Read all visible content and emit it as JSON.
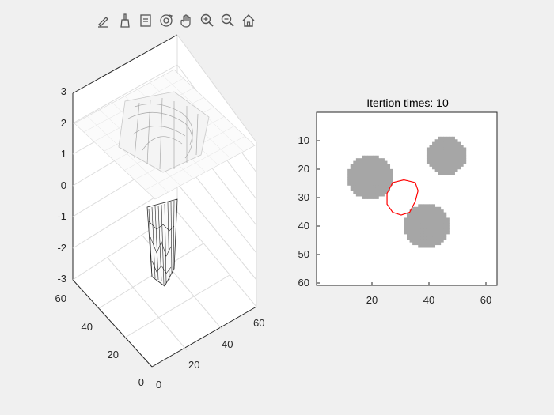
{
  "toolbar": {
    "buttons": [
      {
        "name": "edit-plot-icon"
      },
      {
        "name": "brush-icon"
      },
      {
        "name": "data-tips-icon"
      },
      {
        "name": "rotate-3d-icon"
      },
      {
        "name": "pan-hand-icon"
      },
      {
        "name": "zoom-in-icon"
      },
      {
        "name": "zoom-out-icon"
      },
      {
        "name": "home-restore-view-icon"
      }
    ]
  },
  "left_axes": {
    "z_ticks": [
      "3",
      "2",
      "1",
      "0",
      "-1",
      "-2",
      "-3"
    ],
    "y_ticks": [
      "60",
      "40",
      "20",
      "0"
    ],
    "x_ticks": [
      "0",
      "20",
      "40",
      "60"
    ]
  },
  "right_axes": {
    "title": "Itertion times: 10",
    "y_ticks": [
      "10",
      "20",
      "30",
      "40",
      "50",
      "60"
    ],
    "x_ticks": [
      "20",
      "40",
      "60"
    ]
  },
  "chart_data": [
    {
      "type": "surface",
      "xlim": [
        0,
        64
      ],
      "ylim": [
        0,
        64
      ],
      "zlim": [
        -3,
        3
      ],
      "description_values": {
        "plateau_level": 2,
        "pit_min": -3
      }
    },
    {
      "type": "heatmap",
      "title": "Itertion times: 10",
      "xlim": [
        0,
        64
      ],
      "ylim": [
        0,
        64
      ],
      "blobs": [
        {
          "cx": 19,
          "cy": 24,
          "r": 8
        },
        {
          "cx": 46,
          "cy": 16,
          "r": 7
        },
        {
          "cx": 39,
          "cy": 42,
          "r": 8
        }
      ],
      "contour_color": "#ff0000",
      "contour": [
        [
          31,
          25
        ],
        [
          35,
          26
        ],
        [
          36,
          29
        ],
        [
          35,
          33
        ],
        [
          33,
          37
        ],
        [
          30,
          38
        ],
        [
          27,
          37
        ],
        [
          25,
          34
        ],
        [
          25,
          30
        ],
        [
          27,
          26
        ]
      ]
    }
  ]
}
